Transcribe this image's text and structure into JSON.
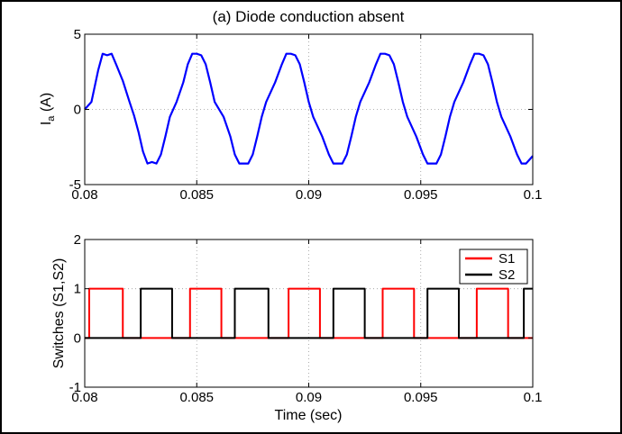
{
  "chart_data": [
    {
      "type": "line",
      "title": "(a) Diode conduction absent",
      "xlabel": "",
      "ylabel": "I",
      "ylabel_sub": "a",
      "ylabel_suffix": " (A)",
      "xlim": [
        0.08,
        0.1
      ],
      "ylim": [
        -5,
        5
      ],
      "xticks": [
        "0.08",
        "0.085",
        "0.09",
        "0.095",
        "0.1"
      ],
      "yticks": [
        "-5",
        "0",
        "5"
      ],
      "grid": true,
      "series": [
        {
          "color": "#0000ff",
          "x": [
            0.08,
            0.0803,
            0.0806,
            0.0808,
            0.081,
            0.0812,
            0.0814,
            0.0817,
            0.082,
            0.0822,
            0.0824,
            0.0826,
            0.0828,
            0.083,
            0.0832,
            0.0834,
            0.0836,
            0.0838,
            0.0841,
            0.0844,
            0.0846,
            0.0848,
            0.085,
            0.0852,
            0.0854,
            0.0856,
            0.0858,
            0.0862,
            0.0865,
            0.0867,
            0.0869,
            0.0871,
            0.0873,
            0.0875,
            0.0877,
            0.0879,
            0.0881,
            0.0885,
            0.0888,
            0.089,
            0.0892,
            0.0894,
            0.0896,
            0.0898,
            0.09,
            0.0902,
            0.0906,
            0.0909,
            0.0911,
            0.0913,
            0.0915,
            0.0917,
            0.0919,
            0.0921,
            0.0923,
            0.0927,
            0.093,
            0.0932,
            0.0934,
            0.0936,
            0.0938,
            0.094,
            0.0942,
            0.0944,
            0.0948,
            0.0951,
            0.0953,
            0.0955,
            0.0957,
            0.0959,
            0.0961,
            0.0963,
            0.0965,
            0.0969,
            0.0972,
            0.0974,
            0.0976,
            0.0978,
            0.098,
            0.0982,
            0.0984,
            0.0986,
            0.099,
            0.0993,
            0.0995,
            0.0997,
            0.1
          ],
          "y": [
            0.0,
            0.5,
            2.6,
            3.7,
            3.6,
            3.7,
            3.0,
            1.9,
            0.5,
            -0.4,
            -1.5,
            -2.8,
            -3.6,
            -3.5,
            -3.6,
            -3.0,
            -1.8,
            -0.5,
            0.5,
            1.8,
            3.0,
            3.7,
            3.7,
            3.6,
            3.0,
            1.8,
            0.5,
            -0.5,
            -1.8,
            -3.0,
            -3.6,
            -3.6,
            -3.6,
            -3.0,
            -1.8,
            -0.5,
            0.5,
            1.8,
            3.0,
            3.7,
            3.7,
            3.6,
            3.0,
            1.8,
            0.5,
            -0.5,
            -1.8,
            -3.0,
            -3.6,
            -3.6,
            -3.6,
            -3.0,
            -1.8,
            -0.5,
            0.5,
            1.8,
            3.0,
            3.7,
            3.7,
            3.6,
            3.0,
            1.8,
            0.5,
            -0.5,
            -1.8,
            -3.0,
            -3.6,
            -3.6,
            -3.6,
            -3.0,
            -1.8,
            -0.5,
            0.5,
            1.8,
            3.0,
            3.7,
            3.7,
            3.6,
            3.0,
            1.8,
            0.5,
            -0.5,
            -1.8,
            -3.0,
            -3.6,
            -3.6,
            -3.1
          ]
        }
      ]
    },
    {
      "type": "line",
      "title": "",
      "xlabel": "Time (sec)",
      "ylabel": "Switches (S1,S2)",
      "xlim": [
        0.08,
        0.1
      ],
      "ylim": [
        -1,
        2
      ],
      "xticks": [
        "0.08",
        "0.085",
        "0.09",
        "0.095",
        "0.1"
      ],
      "yticks": [
        "-1",
        "0",
        "1",
        "2"
      ],
      "grid": true,
      "legend_position": "top-right",
      "series": [
        {
          "name": "S1",
          "color": "#ff0000",
          "x": [
            0.08,
            0.0802,
            0.0802,
            0.0817,
            0.0817,
            0.0847,
            0.0847,
            0.0861,
            0.0861,
            0.0891,
            0.0891,
            0.0905,
            0.0905,
            0.0933,
            0.0933,
            0.0947,
            0.0947,
            0.0975,
            0.0975,
            0.0989,
            0.0989,
            0.1
          ],
          "y": [
            0,
            0,
            1,
            1,
            0,
            0,
            1,
            1,
            0,
            0,
            1,
            1,
            0,
            0,
            1,
            1,
            0,
            0,
            1,
            1,
            0,
            0
          ]
        },
        {
          "name": "S2",
          "color": "#000000",
          "x": [
            0.08,
            0.0825,
            0.0825,
            0.0839,
            0.0839,
            0.0867,
            0.0867,
            0.0882,
            0.0882,
            0.0911,
            0.0911,
            0.0925,
            0.0925,
            0.0953,
            0.0953,
            0.0967,
            0.0967,
            0.0996,
            0.0996,
            0.1
          ],
          "y": [
            0,
            0,
            1,
            1,
            0,
            0,
            1,
            1,
            0,
            0,
            1,
            1,
            0,
            0,
            1,
            1,
            0,
            0,
            1,
            1
          ]
        }
      ]
    }
  ]
}
